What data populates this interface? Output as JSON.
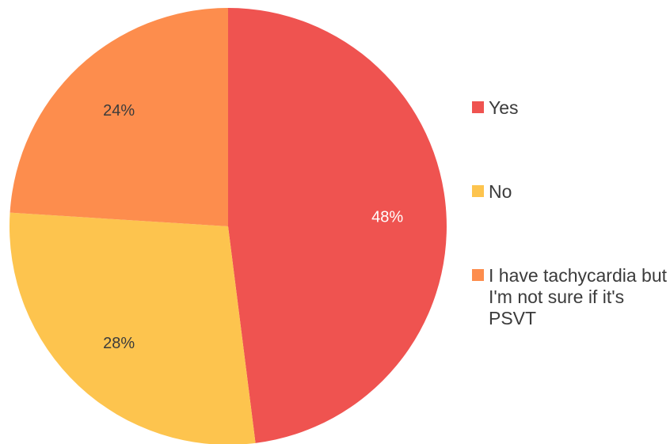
{
  "chart_data": {
    "type": "pie",
    "title": "",
    "start_angle_deg": 0,
    "direction": "clockwise",
    "slices": [
      {
        "label": "Yes",
        "value": 48,
        "value_label": "48%",
        "color": "#ef5350"
      },
      {
        "label": "No",
        "value": 28,
        "value_label": "28%",
        "color": "#fdc44e"
      },
      {
        "label": "I have tachycardia but I'm not sure if it's PSVT",
        "value": 24,
        "value_label": "24%",
        "color": "#fd8d4d"
      }
    ],
    "legend_position": "right",
    "data_labels": "inside"
  }
}
